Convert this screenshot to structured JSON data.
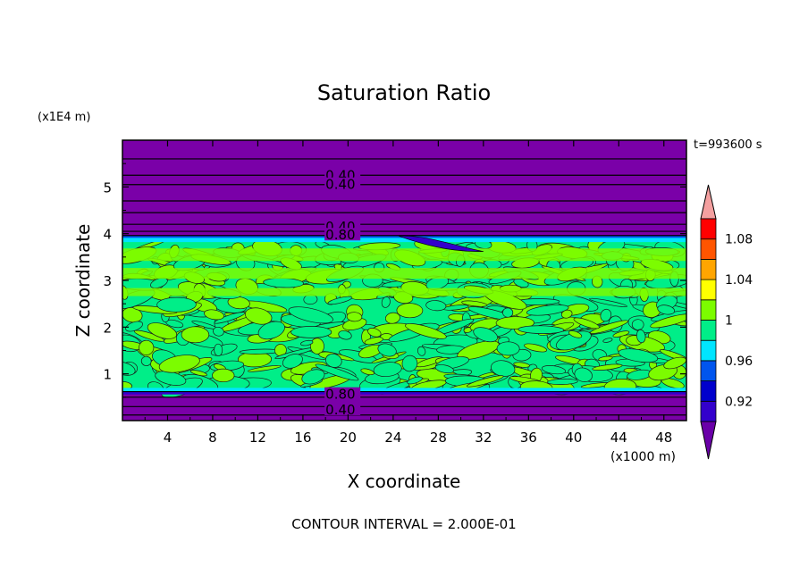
{
  "chart_data": {
    "type": "heatmap",
    "title": "Saturation Ratio",
    "xlabel": "X coordinate",
    "ylabel": "Z coordinate",
    "x_units": "(x1000 m)",
    "y_units": "(x1E4 m)",
    "time_label": "t=993600 s",
    "footer": "CONTOUR INTERVAL = 2.000E-01",
    "xlim": [
      0,
      50
    ],
    "ylim": [
      0,
      6
    ],
    "x_ticks": [
      "4",
      "8",
      "12",
      "16",
      "20",
      "24",
      "28",
      "32",
      "36",
      "40",
      "44",
      "48"
    ],
    "y_ticks": [
      "1",
      "2",
      "3",
      "4",
      "5"
    ],
    "colorbar": {
      "labels": [
        "1.08",
        "1.04",
        "1",
        "0.96",
        "0.92"
      ],
      "colors": [
        "#6a00a8",
        "#3300cc",
        "#0000cc",
        "#0055ee",
        "#00e5ff",
        "#00ee88",
        "#7cfc00",
        "#ffff00",
        "#ffa500",
        "#ff5500",
        "#ff0000",
        "#f4a0a0"
      ]
    },
    "regions": [
      {
        "name": "upper-dry-layer",
        "z_range": [
          3.95,
          6.0
        ],
        "value": "<0.90",
        "color": "#7a00a8"
      },
      {
        "name": "cloud-layer",
        "z_range": [
          0.65,
          3.85
        ],
        "value": "0.98-1.02",
        "colors": [
          "#00ee88",
          "#7cfc00"
        ]
      },
      {
        "name": "lower-dry-layer",
        "z_range": [
          0.0,
          0.65
        ],
        "value": "<0.90",
        "color": "#7a00a8"
      }
    ],
    "contour_labels": [
      {
        "text": "0.40",
        "x": 18.0,
        "z": 5.25
      },
      {
        "text": "0.40",
        "x": 18.0,
        "z": 5.05
      },
      {
        "text": "0.40",
        "x": 18.0,
        "z": 4.15
      },
      {
        "text": "0.80",
        "x": 18.0,
        "z": 3.97
      },
      {
        "text": "0.80",
        "x": 18.0,
        "z": 0.56
      },
      {
        "text": "0.40",
        "x": 18.0,
        "z": 0.23
      }
    ],
    "upper_contour_levels_z": [
      5.6,
      5.25,
      5.05,
      4.7,
      4.45,
      4.2,
      4.05,
      3.96
    ],
    "lower_contour_levels_z": [
      0.62,
      0.5,
      0.3,
      0.12
    ]
  }
}
